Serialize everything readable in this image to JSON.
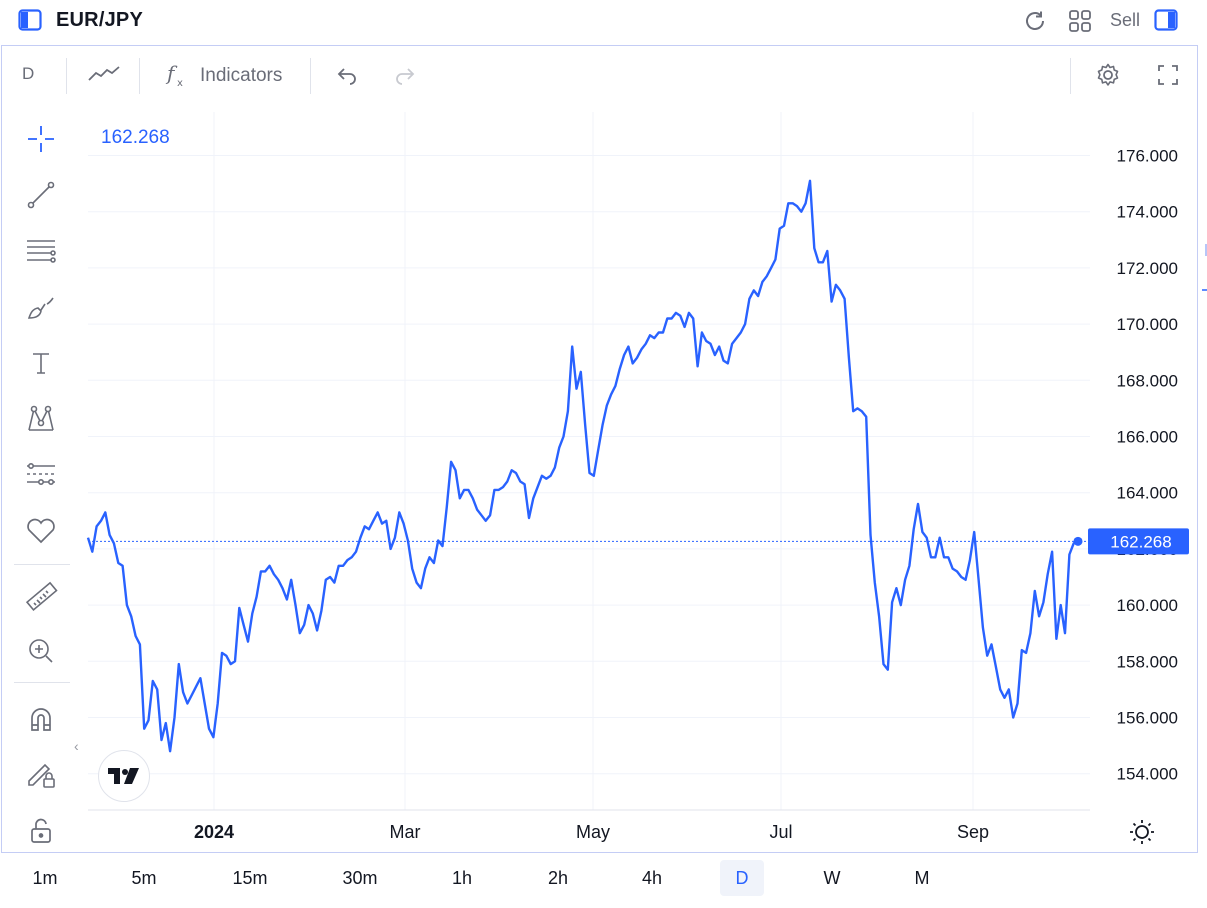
{
  "header": {
    "symbol": "EUR/JPY",
    "sell_label": "Sell"
  },
  "toolbar": {
    "interval": "D",
    "indicators_label": "Indicators"
  },
  "chart": {
    "current_price_label": "162.268",
    "last_price_tag": "162.268",
    "line_color": "#2962ff",
    "y_ticks": [
      "176.000",
      "174.000",
      "172.000",
      "170.000",
      "168.000",
      "166.000",
      "164.000",
      "162.000",
      "160.000",
      "158.000",
      "156.000",
      "154.000"
    ],
    "x_labels": [
      "2024",
      "Mar",
      "May",
      "Jul",
      "Sep"
    ]
  },
  "chart_data": {
    "type": "line",
    "title": "",
    "xlabel": "",
    "ylabel": "",
    "ylim": [
      153,
      177
    ],
    "x_ticks": [
      "2024",
      "Mar",
      "May",
      "Jul",
      "Sep"
    ],
    "current_value": 162.268,
    "series": [
      {
        "values": [
          162.4,
          161.9,
          162.8,
          163.0,
          163.3,
          162.5,
          162.2,
          161.5,
          161.4,
          160.0,
          159.6,
          158.9,
          158.6,
          155.6,
          155.9,
          157.3,
          157.0,
          155.2,
          155.8,
          154.8,
          156.0,
          157.9,
          156.9,
          156.5,
          156.8,
          157.1,
          157.4,
          156.5,
          155.6,
          155.3,
          156.5,
          158.3,
          158.2,
          157.9,
          158.0,
          159.9,
          159.3,
          158.7,
          159.7,
          160.3,
          161.2,
          161.2,
          161.4,
          161.1,
          160.9,
          160.6,
          160.2,
          160.9,
          160.0,
          159.0,
          159.3,
          160.0,
          159.7,
          159.1,
          159.8,
          160.9,
          161.0,
          160.8,
          161.4,
          161.4,
          161.6,
          161.7,
          161.9,
          162.4,
          162.8,
          162.7,
          163.0,
          163.3,
          162.9,
          163.0,
          162.0,
          162.4,
          163.3,
          162.9,
          162.3,
          161.3,
          160.8,
          160.6,
          161.3,
          161.7,
          161.5,
          162.3,
          162.1,
          163.5,
          165.1,
          164.8,
          163.8,
          164.1,
          164.1,
          163.8,
          163.4,
          163.2,
          163.0,
          163.2,
          164.1,
          164.1,
          164.2,
          164.4,
          164.8,
          164.7,
          164.4,
          164.3,
          163.1,
          163.8,
          164.2,
          164.6,
          164.5,
          164.6,
          164.9,
          165.6,
          166.0,
          166.9,
          169.2,
          167.7,
          168.3,
          166.4,
          164.7,
          164.6,
          165.5,
          166.4,
          167.1,
          167.5,
          167.8,
          168.4,
          168.9,
          169.2,
          168.6,
          168.8,
          169.1,
          169.3,
          169.6,
          169.5,
          169.7,
          169.7,
          170.2,
          170.2,
          170.4,
          170.3,
          169.9,
          170.4,
          170.2,
          168.5,
          169.7,
          169.4,
          169.3,
          168.9,
          169.2,
          168.7,
          168.6,
          169.3,
          169.5,
          169.7,
          170.0,
          170.9,
          171.2,
          171.0,
          171.5,
          171.7,
          172.0,
          172.3,
          173.4,
          173.5,
          174.3,
          174.3,
          174.2,
          174.0,
          174.3,
          175.1,
          172.7,
          172.2,
          172.2,
          172.6,
          170.8,
          171.4,
          171.2,
          170.9,
          168.8,
          166.9,
          167.0,
          166.9,
          166.7,
          162.5,
          160.8,
          159.6,
          157.9,
          157.7,
          160.1,
          160.6,
          160.0,
          160.9,
          161.4,
          162.7,
          163.6,
          162.6,
          162.4,
          161.7,
          161.7,
          162.4,
          161.7,
          161.7,
          161.3,
          161.2,
          161.0,
          160.9,
          161.6,
          162.6,
          160.9,
          159.2,
          158.2,
          158.6,
          157.8,
          157.0,
          156.7,
          157.0,
          156.0,
          156.5,
          158.4,
          158.3,
          159.0,
          160.5,
          159.6,
          160.1,
          161.1,
          161.9,
          158.8,
          160.0,
          159.0,
          161.8,
          162.2,
          162.268
        ]
      }
    ],
    "grid": true,
    "legend": "none"
  },
  "intervals": [
    {
      "label": "1m",
      "active": false
    },
    {
      "label": "5m",
      "active": false
    },
    {
      "label": "15m",
      "active": false
    },
    {
      "label": "30m",
      "active": false
    },
    {
      "label": "1h",
      "active": false
    },
    {
      "label": "2h",
      "active": false
    },
    {
      "label": "4h",
      "active": false
    },
    {
      "label": "D",
      "active": true
    },
    {
      "label": "W",
      "active": false
    },
    {
      "label": "M",
      "active": false
    }
  ],
  "icons": {
    "left_tools": [
      "crosshair-icon",
      "trend-line-icon",
      "fib-lines-icon",
      "brush-icon",
      "text-icon",
      "pattern-icon",
      "forecast-icon",
      "favorite-icon",
      "ruler-icon",
      "zoom-in-icon",
      "magnet-icon",
      "lock-drawing-icon",
      "lock-icon"
    ]
  }
}
